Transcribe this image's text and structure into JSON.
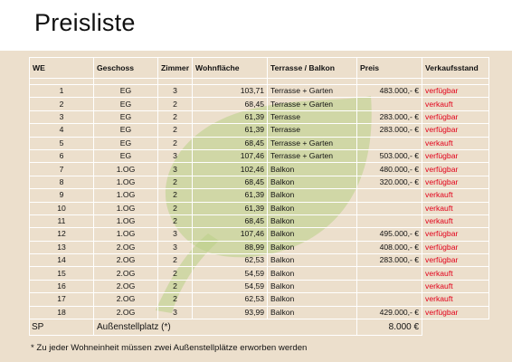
{
  "title": "Preisliste",
  "table": {
    "headers": [
      "WE",
      "Geschoss",
      "Zimmer",
      "Wohnfläche",
      "Terrasse / Balkon",
      "Preis",
      "Verkaufsstand"
    ],
    "rows": [
      {
        "we": "1",
        "geschoss": "EG",
        "zimmer": "3",
        "flaeche": "103,71",
        "terrasse": "Terrasse + Garten",
        "preis": "483.000,- €",
        "status": "verfügbar"
      },
      {
        "we": "2",
        "geschoss": "EG",
        "zimmer": "2",
        "flaeche": "68,45",
        "terrasse": "Terrasse + Garten",
        "preis": "",
        "status": "verkauft"
      },
      {
        "we": "3",
        "geschoss": "EG",
        "zimmer": "2",
        "flaeche": "61,39",
        "terrasse": "Terrasse",
        "preis": "283.000,- €",
        "status": "verfügbar"
      },
      {
        "we": "4",
        "geschoss": "EG",
        "zimmer": "2",
        "flaeche": "61,39",
        "terrasse": "Terrasse",
        "preis": "283.000,- €",
        "status": "verfügbar"
      },
      {
        "we": "5",
        "geschoss": "EG",
        "zimmer": "2",
        "flaeche": "68,45",
        "terrasse": "Terrasse + Garten",
        "preis": "",
        "status": "verkauft"
      },
      {
        "we": "6",
        "geschoss": "EG",
        "zimmer": "3",
        "flaeche": "107,46",
        "terrasse": "Terrasse + Garten",
        "preis": "503.000,- €",
        "status": "verfügbar"
      },
      {
        "we": "7",
        "geschoss": "1.OG",
        "zimmer": "3",
        "flaeche": "102,46",
        "terrasse": "Balkon",
        "preis": "480.000,- €",
        "status": "verfügbar"
      },
      {
        "we": "8",
        "geschoss": "1.OG",
        "zimmer": "2",
        "flaeche": "68,45",
        "terrasse": "Balkon",
        "preis": "320.000,- €",
        "status": "verfügbar"
      },
      {
        "we": "9",
        "geschoss": "1.OG",
        "zimmer": "2",
        "flaeche": "61,39",
        "terrasse": "Balkon",
        "preis": "",
        "status": "verkauft"
      },
      {
        "we": "10",
        "geschoss": "1.OG",
        "zimmer": "2",
        "flaeche": "61,39",
        "terrasse": "Balkon",
        "preis": "",
        "status": "verkauft"
      },
      {
        "we": "11",
        "geschoss": "1.OG",
        "zimmer": "2",
        "flaeche": "68,45",
        "terrasse": "Balkon",
        "preis": "",
        "status": "verkauft"
      },
      {
        "we": "12",
        "geschoss": "1.OG",
        "zimmer": "3",
        "flaeche": "107,46",
        "terrasse": "Balkon",
        "preis": "495.000,- €",
        "status": "verfügbar"
      },
      {
        "we": "13",
        "geschoss": "2.OG",
        "zimmer": "3",
        "flaeche": "88,99",
        "terrasse": "Balkon",
        "preis": "408.000,- €",
        "status": "verfügbar"
      },
      {
        "we": "14",
        "geschoss": "2.OG",
        "zimmer": "2",
        "flaeche": "62,53",
        "terrasse": "Balkon",
        "preis": "283.000,- €",
        "status": "verfügbar"
      },
      {
        "we": "15",
        "geschoss": "2.OG",
        "zimmer": "2",
        "flaeche": "54,59",
        "terrasse": "Balkon",
        "preis": "",
        "status": "verkauft"
      },
      {
        "we": "16",
        "geschoss": "2.OG",
        "zimmer": "2",
        "flaeche": "54,59",
        "terrasse": "Balkon",
        "preis": "",
        "status": "verkauft"
      },
      {
        "we": "17",
        "geschoss": "2.OG",
        "zimmer": "2",
        "flaeche": "62,53",
        "terrasse": "Balkon",
        "preis": "",
        "status": "verkauft"
      },
      {
        "we": "18",
        "geschoss": "2.OG",
        "zimmer": "3",
        "flaeche": "93,99",
        "terrasse": "Balkon",
        "preis": "429.000,- €",
        "status": "verfügbar"
      }
    ],
    "stellplatz": {
      "code": "SP",
      "label": "Außenstellplatz (*)",
      "preis": "8.000 €"
    }
  },
  "footnote": "* Zu jeder Wohneinheit müssen zwei Außenstellplätze erworben werden",
  "colors": {
    "background": "#ecdfcc",
    "leaf_watermark": "#b9cf86",
    "status_text": "#e2001a"
  },
  "watermark_icon": "leaf-watermark"
}
